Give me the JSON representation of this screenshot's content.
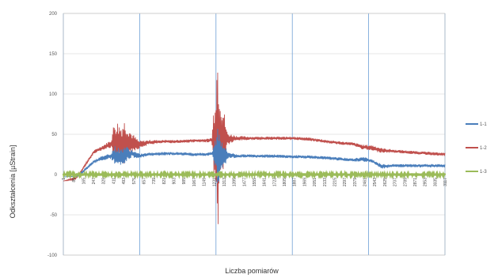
{
  "chart_data": {
    "type": "line",
    "xlabel": "Liczba pomiarów",
    "ylabel": "Odkształcenia [µStrain]",
    "ylim": [
      -100,
      200
    ],
    "y_ticks": [
      -100,
      -50,
      0,
      50,
      100,
      150,
      200
    ],
    "x_tick_labels": [
      "1",
      "85",
      "165",
      "247",
      "329",
      "411",
      "493",
      "575",
      "657",
      "739",
      "821",
      "903",
      "985",
      "1067",
      "1149",
      "1231",
      "1313",
      "1395",
      "1477",
      "1559",
      "1641",
      "1723",
      "1805",
      "1887",
      "1969",
      "2051",
      "2133",
      "2215",
      "2297",
      "2379",
      "2461",
      "2543",
      "2625",
      "2707",
      "2789",
      "2871",
      "2953",
      "3035",
      "3117"
    ],
    "grid": true,
    "legend_position": "right",
    "series": [
      {
        "name": "1-1",
        "color": "#4a7ebb",
        "x": [
          1,
          120,
          170,
          250,
          330,
          390,
          420,
          470,
          500,
          560,
          620,
          700,
          820,
          940,
          1060,
          1160,
          1215,
          1240,
          1260,
          1290,
          1340,
          1420,
          1560,
          1720,
          1880,
          2000,
          2200,
          2360,
          2450,
          2520,
          2600,
          2700,
          2800,
          3000,
          3117
        ],
        "y": [
          -3,
          -2,
          5,
          16,
          21,
          23,
          24,
          22,
          25,
          26,
          23,
          25,
          26,
          26,
          25,
          25,
          26,
          24,
          25,
          24,
          24,
          23,
          23,
          23,
          22,
          22,
          20,
          18,
          19,
          17,
          10,
          11,
          11,
          11,
          11
        ],
        "amp": [
          0,
          0,
          2,
          2,
          3,
          4,
          12,
          10,
          12,
          5,
          3,
          2,
          2,
          2,
          2,
          2,
          2,
          20,
          40,
          25,
          5,
          2,
          2,
          2,
          2,
          2,
          2,
          2,
          3,
          2,
          3,
          2,
          2,
          2,
          2
        ]
      },
      {
        "name": "1-2",
        "color": "#c0504d",
        "x": [
          1,
          100,
          150,
          250,
          330,
          390,
          420,
          470,
          500,
          560,
          620,
          700,
          820,
          940,
          1060,
          1160,
          1215,
          1240,
          1260,
          1290,
          1340,
          1420,
          1560,
          1720,
          1880,
          2000,
          2200,
          2360,
          2450,
          2520,
          2600,
          2700,
          2800,
          3000,
          3117
        ],
        "y": [
          -8,
          -5,
          5,
          28,
          34,
          38,
          40,
          36,
          41,
          40,
          37,
          40,
          41,
          41,
          42,
          42,
          43,
          42,
          45,
          45,
          44,
          45,
          45,
          45,
          45,
          44,
          40,
          38,
          34,
          33,
          30,
          29,
          28,
          26,
          25
        ],
        "amp": [
          0,
          2,
          2,
          2,
          3,
          5,
          30,
          28,
          28,
          12,
          5,
          3,
          2,
          2,
          2,
          2,
          3,
          80,
          120,
          60,
          8,
          3,
          2,
          2,
          2,
          2,
          2,
          2,
          3,
          4,
          3,
          2,
          2,
          2,
          2
        ]
      },
      {
        "name": "1-3",
        "color": "#9bbb59",
        "x": [
          1,
          3117
        ],
        "y": [
          0,
          0
        ],
        "amp": [
          1.5,
          1.5
        ]
      }
    ]
  }
}
